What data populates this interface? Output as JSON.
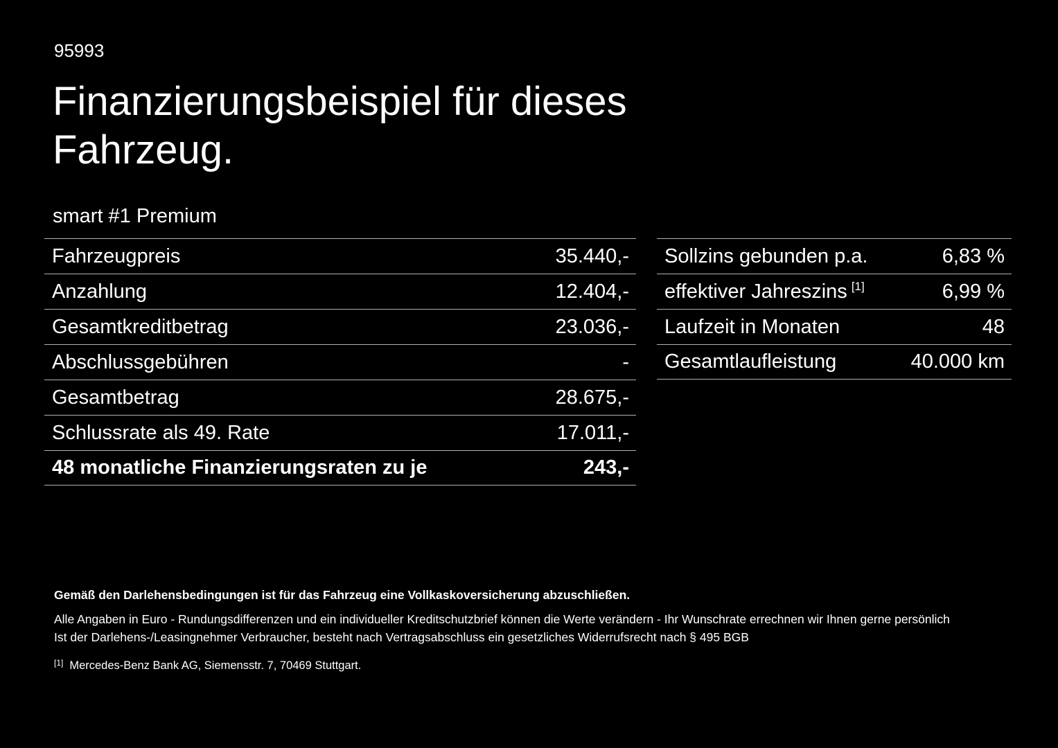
{
  "header": {
    "id": "95993",
    "title_line1": "Finanzierungsbeispiel für dieses",
    "title_line2": "Fahrzeug.",
    "vehicle": "smart #1 Premium"
  },
  "financing_table": {
    "rows": [
      {
        "label": "Fahrzeugpreis",
        "value": "35.440,-"
      },
      {
        "label": "Anzahlung",
        "value": "12.404,-"
      },
      {
        "label": "Gesamtkreditbetrag",
        "value": "23.036,-"
      },
      {
        "label": "Abschlussgebühren",
        "value": "-"
      },
      {
        "label": "Gesamtbetrag",
        "value": "28.675,-"
      },
      {
        "label": "Schlussrate als 49. Rate",
        "value": "17.011,-"
      },
      {
        "label": "48 monatliche Finanzierungsraten zu je",
        "value": "243,-"
      }
    ]
  },
  "conditions_table": {
    "rows": [
      {
        "label": "Sollzins gebunden p.a.",
        "value": "6,83 %"
      },
      {
        "label": "effektiver Jahreszins",
        "marker": "[1]",
        "value": "6,99 %"
      },
      {
        "label": "Laufzeit in Monaten",
        "value": "48"
      },
      {
        "label": "Gesamtlaufleistung",
        "value": "40.000 km"
      }
    ]
  },
  "footer": {
    "insurance_note": "Gemäß den Darlehensbedingungen ist für das Fahrzeug eine Vollkaskoversicherung abzuschließen.",
    "disclaimer_line1": "Alle Angaben in Euro - Rundungsdifferenzen und ein individueller Kreditschutzbrief können die Werte verändern - Ihr Wunschrate errechnen wir Ihnen gerne persönlich",
    "disclaimer_line2": "Ist der Darlehens-/Leasingnehmer Verbraucher, besteht nach Vertragsabschluss ein gesetzliches Widerrufsrecht nach § 495 BGB",
    "footnote_marker": "[1]",
    "footnote_text": "Mercedes-Benz Bank AG, Siemensstr. 7, 70469 Stuttgart."
  },
  "colors": {
    "background": "#000000",
    "text": "#ffffff",
    "divider": "#b3b3b3"
  }
}
